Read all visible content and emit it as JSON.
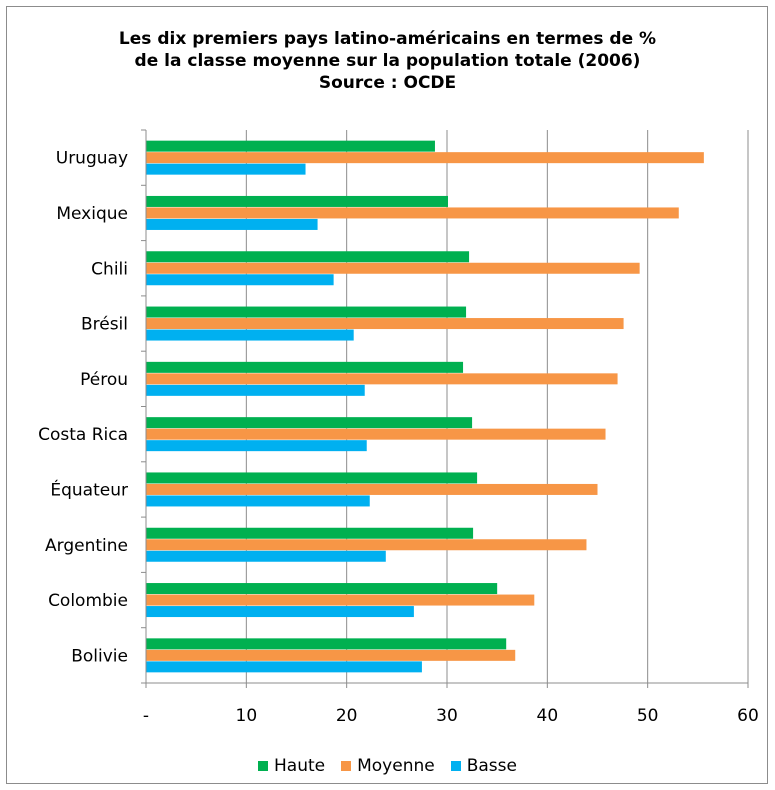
{
  "chart_data": {
    "type": "bar",
    "orientation": "horizontal",
    "title": [
      "Les dix premiers pays latino-américains en termes de %",
      "de la classe moyenne sur la population totale (2006)",
      "Source : OCDE"
    ],
    "categories": [
      "Uruguay",
      "Mexique",
      "Chili",
      "Brésil",
      "Pérou",
      "Costa Rica",
      "Équateur",
      "Argentine",
      "Colombie",
      "Bolivie"
    ],
    "series": [
      {
        "name": "Haute",
        "color": "#00b050",
        "values": [
          28.8,
          30.1,
          32.2,
          31.9,
          31.6,
          32.5,
          33.0,
          32.6,
          35.0,
          35.9
        ]
      },
      {
        "name": "Moyenne",
        "color": "#f79646",
        "values": [
          55.6,
          53.1,
          49.2,
          47.6,
          47.0,
          45.8,
          45.0,
          43.9,
          38.7,
          36.8
        ]
      },
      {
        "name": "Basse",
        "color": "#00b0f0",
        "values": [
          15.9,
          17.1,
          18.7,
          20.7,
          21.8,
          22.0,
          22.3,
          23.9,
          26.7,
          27.5
        ]
      }
    ],
    "xlim": [
      0,
      60
    ],
    "xticks": [
      "-",
      "10",
      "20",
      "30",
      "40",
      "50",
      "60"
    ],
    "xtick_values": [
      0,
      10,
      20,
      30,
      40,
      50,
      60
    ],
    "grid": "vertical",
    "legend_position": "bottom"
  }
}
